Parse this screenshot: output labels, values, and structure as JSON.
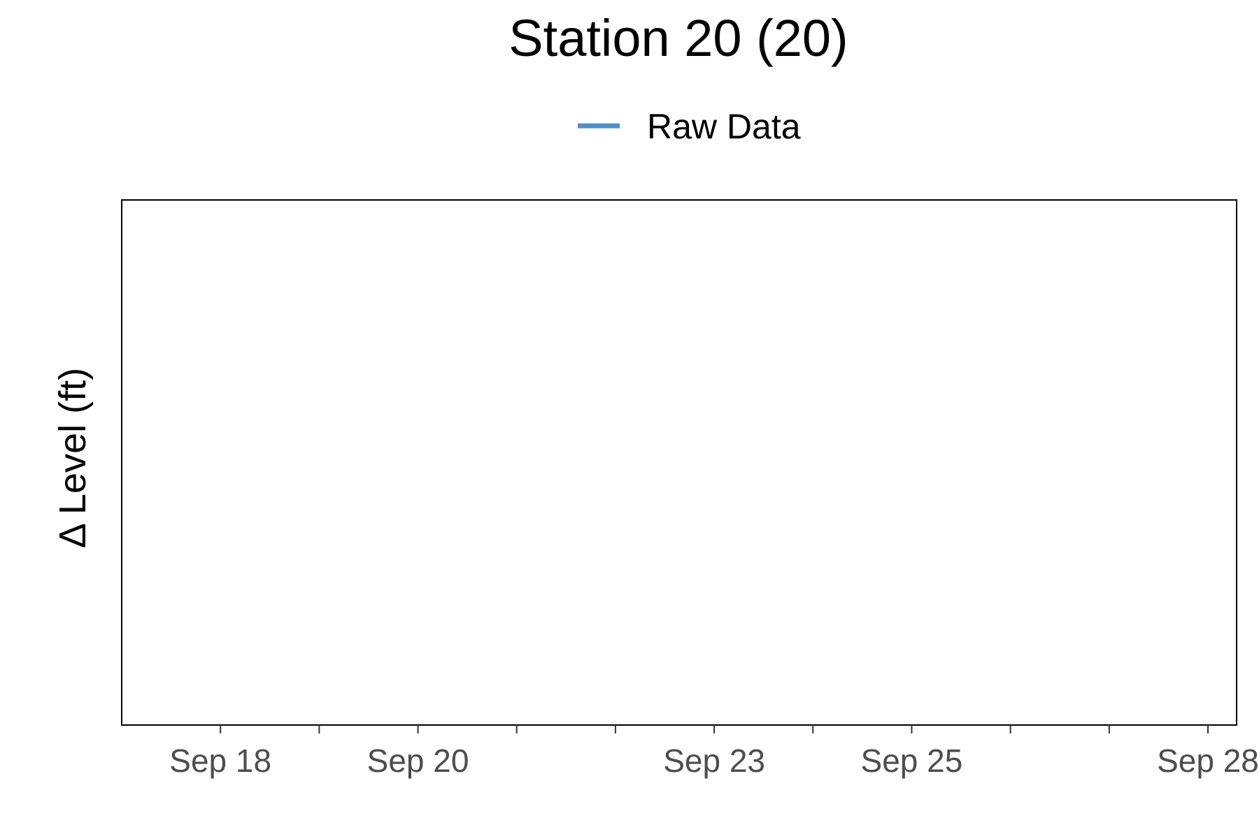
{
  "chart_data": {
    "type": "line",
    "title": "Station 20 (20)",
    "xlabel": "",
    "ylabel": "Δ Level (ft)",
    "legend": {
      "position": "top"
    },
    "grid": false,
    "x_range": [
      "2022-09-17",
      "2022-09-28"
    ],
    "x_ticks": [
      {
        "date": "2022-09-18",
        "label": "Sep 18"
      },
      {
        "date": "2022-09-19",
        "label": ""
      },
      {
        "date": "2022-09-20",
        "label": "Sep 20"
      },
      {
        "date": "2022-09-21",
        "label": ""
      },
      {
        "date": "2022-09-22",
        "label": ""
      },
      {
        "date": "2022-09-23",
        "label": "Sep 23"
      },
      {
        "date": "2022-09-24",
        "label": ""
      },
      {
        "date": "2022-09-25",
        "label": "Sep 25"
      },
      {
        "date": "2022-09-26",
        "label": ""
      },
      {
        "date": "2022-09-27",
        "label": ""
      },
      {
        "date": "2022-09-28",
        "label": "Sep 28"
      }
    ],
    "series": [
      {
        "name": "Raw Data",
        "color": "#4f8fca",
        "x": [],
        "y": []
      }
    ]
  }
}
